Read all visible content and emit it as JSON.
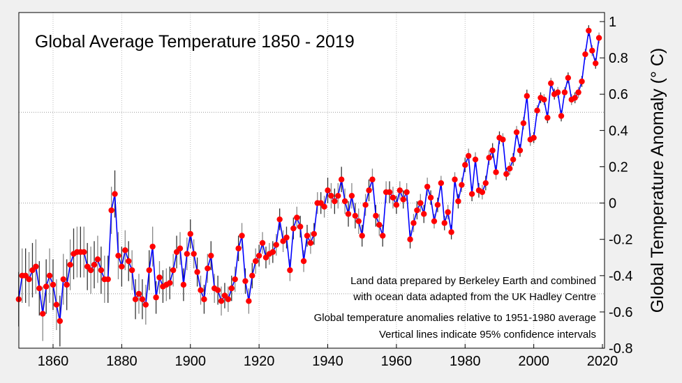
{
  "chart_data": {
    "type": "line",
    "title": "Global Average Temperature 1850 - 2019",
    "ylabel": "Global Temperature Anomaly (° C)",
    "xlabel": "",
    "xlim": [
      1850,
      2020
    ],
    "ylim": [
      -0.8,
      1.0
    ],
    "xticks": [
      "1860",
      "1880",
      "1900",
      "1920",
      "1940",
      "1960",
      "1980",
      "2000",
      "2020"
    ],
    "yticks": [
      "1",
      "0.8",
      "0.6",
      "0.4",
      "0.2",
      "0",
      "-0.2",
      "-0.4",
      "-0.6",
      "-0.8"
    ],
    "grid": {
      "x_step_years": 20,
      "y_step": 0.5,
      "style": "dotted"
    },
    "annotations": [
      "Land data prepared by Berkeley Earth and combined",
      "with ocean data adapted from the UK Hadley Centre",
      "Global temperature anomalies relative to 1951-1980 average",
      "Vertical lines indicate 95% confidence intervals"
    ],
    "colors": {
      "line": "#0000ff",
      "marker": "#ff0000",
      "error_bar": "#404040",
      "background": "#f0f0f0",
      "plot_area": "#ffffff"
    },
    "start_year": 1850,
    "values": [
      -0.53,
      -0.4,
      -0.4,
      -0.42,
      -0.37,
      -0.35,
      -0.47,
      -0.61,
      -0.46,
      -0.4,
      -0.45,
      -0.56,
      -0.65,
      -0.42,
      -0.45,
      -0.34,
      -0.28,
      -0.27,
      -0.27,
      -0.27,
      -0.35,
      -0.37,
      -0.34,
      -0.31,
      -0.37,
      -0.42,
      -0.42,
      -0.04,
      0.05,
      -0.29,
      -0.35,
      -0.26,
      -0.32,
      -0.37,
      -0.53,
      -0.5,
      -0.53,
      -0.56,
      -0.37,
      -0.24,
      -0.52,
      -0.41,
      -0.46,
      -0.45,
      -0.44,
      -0.37,
      -0.27,
      -0.25,
      -0.45,
      -0.28,
      -0.17,
      -0.28,
      -0.38,
      -0.48,
      -0.53,
      -0.36,
      -0.29,
      -0.47,
      -0.48,
      -0.54,
      -0.51,
      -0.53,
      -0.47,
      -0.42,
      -0.25,
      -0.18,
      -0.43,
      -0.54,
      -0.4,
      -0.32,
      -0.29,
      -0.22,
      -0.3,
      -0.28,
      -0.27,
      -0.23,
      -0.09,
      -0.21,
      -0.19,
      -0.37,
      -0.14,
      -0.08,
      -0.13,
      -0.32,
      -0.18,
      -0.22,
      -0.17,
      0.0,
      0.0,
      -0.02,
      0.07,
      0.04,
      0.01,
      0.04,
      0.13,
      0.01,
      -0.06,
      0.04,
      -0.07,
      -0.1,
      -0.18,
      -0.01,
      0.07,
      0.13,
      -0.07,
      -0.12,
      -0.18,
      0.06,
      0.06,
      0.03,
      -0.01,
      0.07,
      0.02,
      0.06,
      -0.2,
      -0.11,
      -0.04,
      0.0,
      -0.06,
      0.09,
      0.03,
      -0.1,
      -0.01,
      0.11,
      -0.11,
      -0.05,
      -0.16,
      0.13,
      0.01,
      0.1,
      0.21,
      0.26,
      0.05,
      0.24,
      0.07,
      0.06,
      0.11,
      0.25,
      0.29,
      0.17,
      0.36,
      0.35,
      0.16,
      0.19,
      0.24,
      0.39,
      0.29,
      0.44,
      0.59,
      0.35,
      0.36,
      0.51,
      0.58,
      0.57,
      0.47,
      0.66,
      0.6,
      0.61,
      0.48,
      0.61,
      0.69,
      0.57,
      0.58,
      0.61,
      0.67,
      0.82,
      0.95,
      0.84,
      0.77,
      0.91
    ],
    "ci95_halfwidth_by_decade": [
      0.15,
      0.14,
      0.13,
      0.11,
      0.09,
      0.08,
      0.07,
      0.06,
      0.06,
      0.07,
      0.06,
      0.05,
      0.04,
      0.04,
      0.035,
      0.03,
      0.03
    ]
  }
}
